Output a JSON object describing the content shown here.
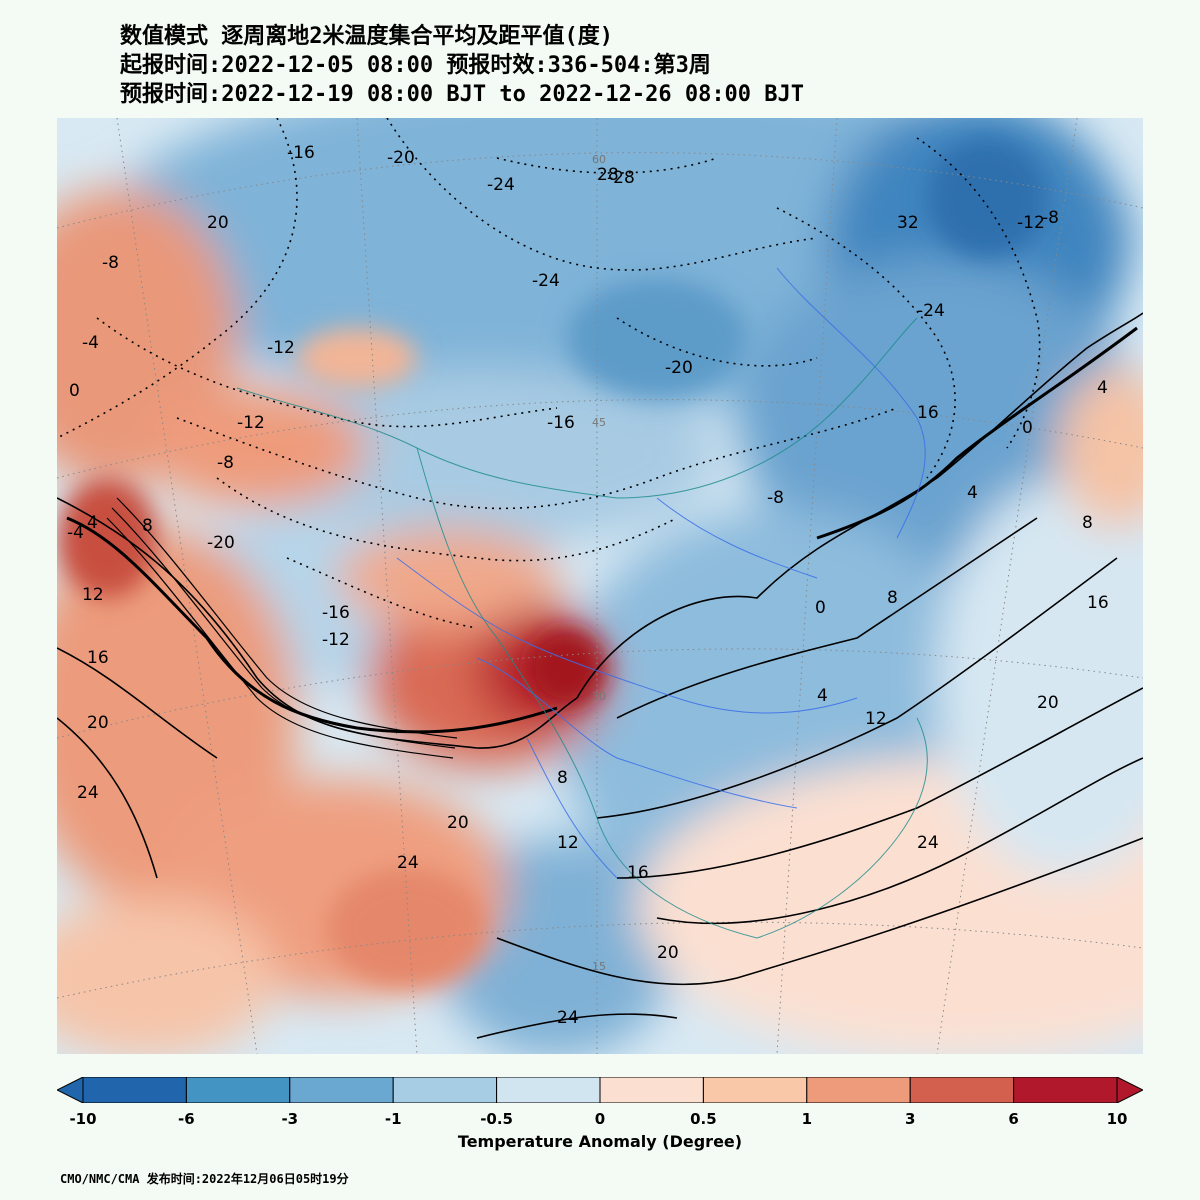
{
  "header": {
    "line1": "数值模式 逐周离地2米温度集合平均及距平值(度)",
    "line2": "起报时间:2022-12-05 08:00 预报时效:336-504:第3周",
    "line3": "预报时间:2022-12-19 08:00 BJT to 2022-12-26 08:00 BJT"
  },
  "map": {
    "contour_labels": [
      "-28",
      "-24",
      "-24",
      "-24",
      "-20",
      "-20",
      "-20",
      "-16",
      "-16",
      "-16",
      "-12",
      "-12",
      "-12",
      "-12",
      "-8",
      "-8",
      "-8",
      "-8",
      "-4",
      "-4",
      "0",
      "0",
      "0",
      "4",
      "4",
      "4",
      "4",
      "8",
      "8",
      "8",
      "8",
      "12",
      "12",
      "12",
      "16",
      "16",
      "16",
      "16",
      "20",
      "20",
      "20",
      "20",
      "20",
      "24",
      "24",
      "24",
      "24",
      "28",
      "32"
    ],
    "latitude_labels": [
      "60",
      "45",
      "30",
      "15"
    ]
  },
  "colorbar": {
    "title": "Temperature Anomaly (Degree)",
    "ticks": [
      "-10",
      "-6",
      "-3",
      "-1",
      "-0.5",
      "0",
      "0.5",
      "1",
      "3",
      "6",
      "10"
    ],
    "colors": [
      "#2166ac",
      "#4393c3",
      "#6aa8d2",
      "#a6cde3",
      "#d1e5f0",
      "#fbe0d2",
      "#f9c8a8",
      "#ee9b7b",
      "#d35f4e",
      "#b2182b"
    ]
  },
  "footer": {
    "text": "CMO/NMC/CMA 发布时间:2022年12月06日05时19分"
  }
}
